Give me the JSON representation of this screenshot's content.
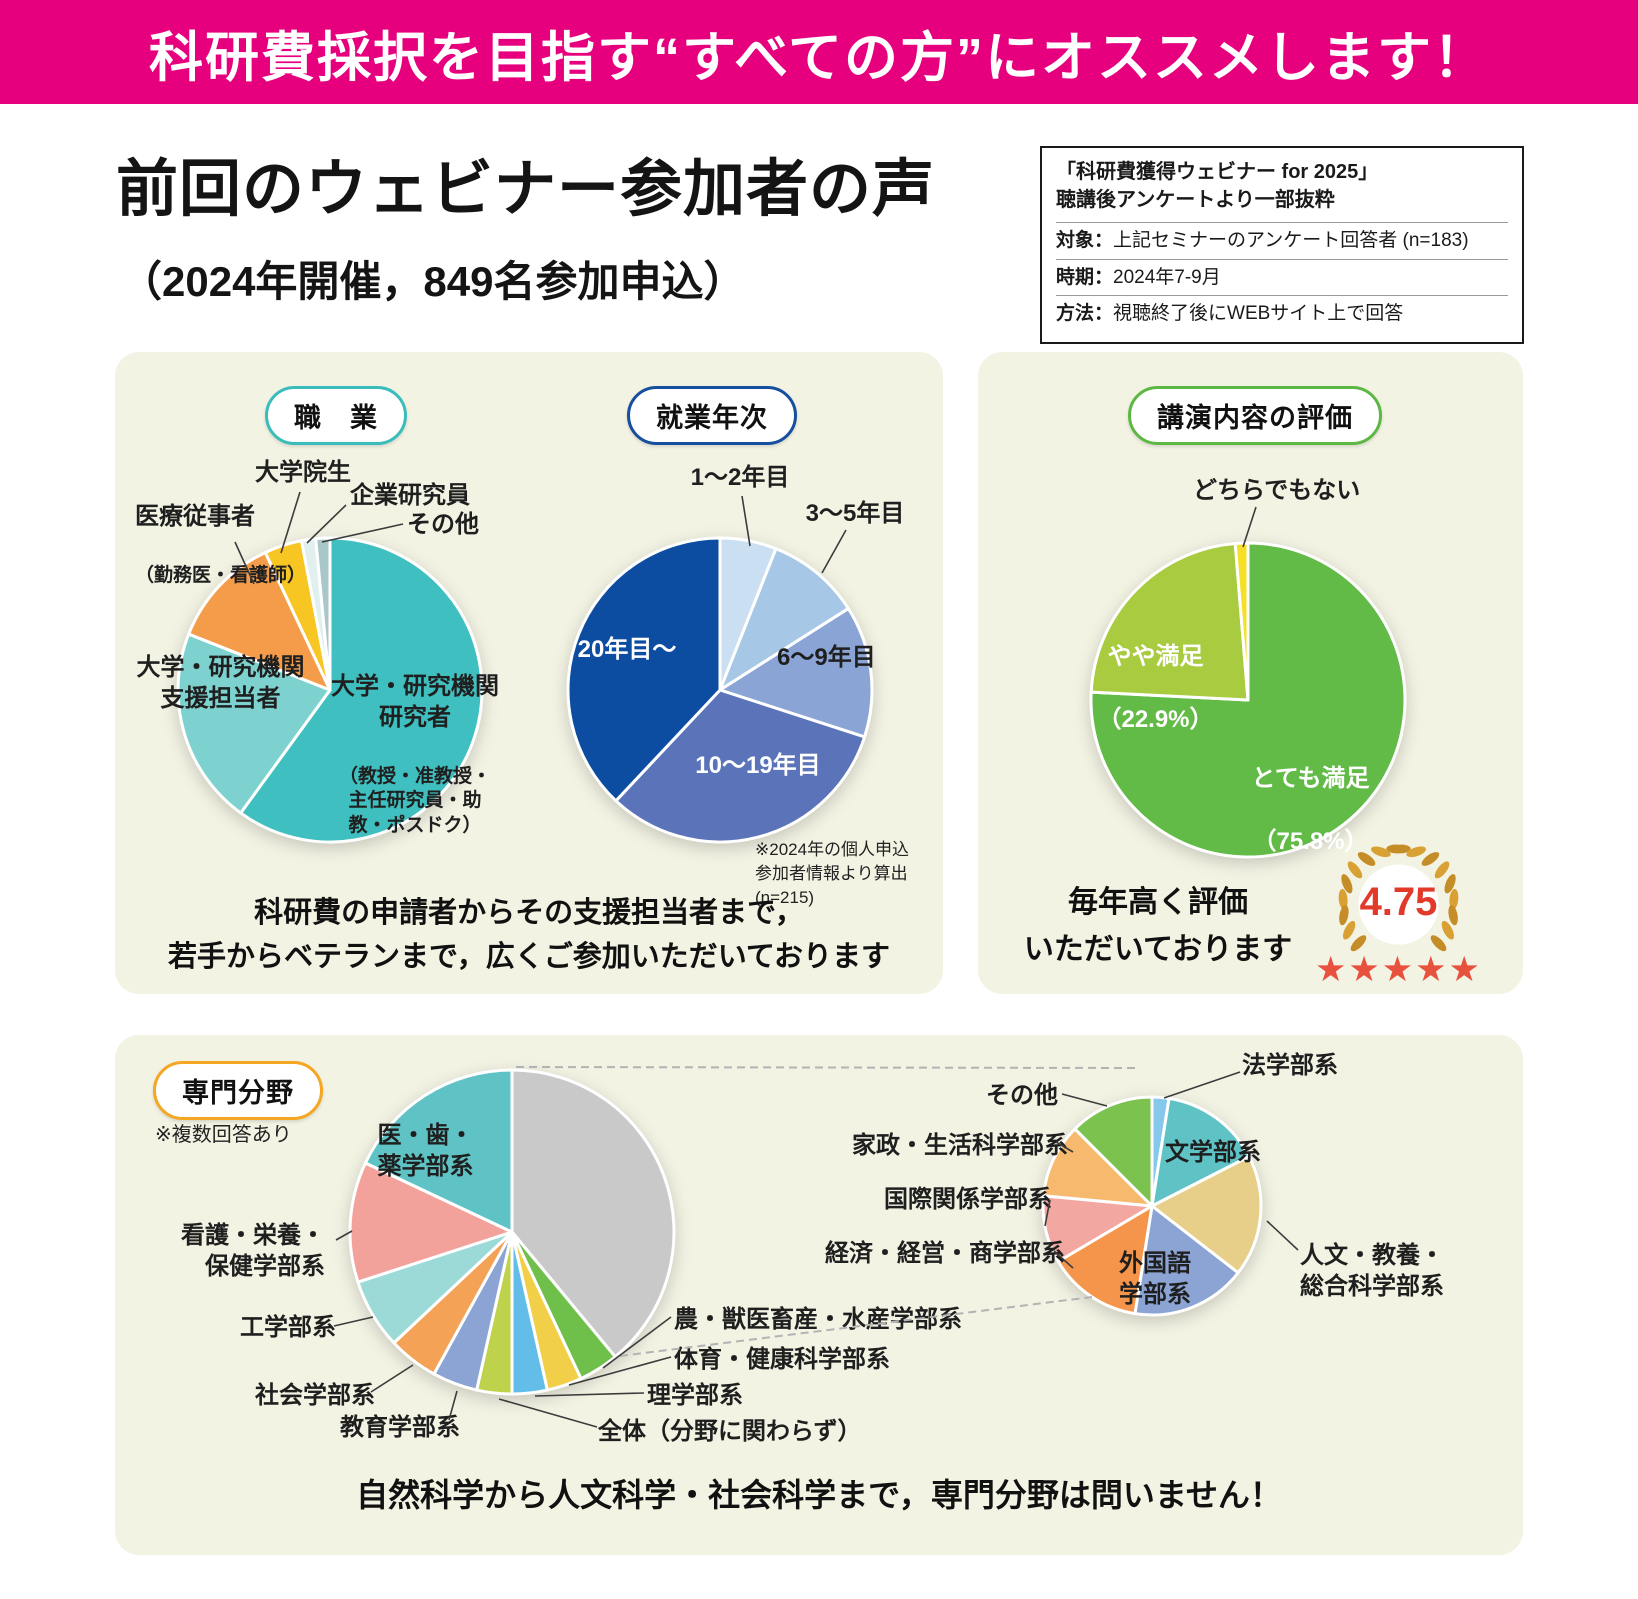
{
  "colors": {
    "banner_bg": "#e6007e",
    "panel_bg": "#f3f3e4",
    "star_color": "#e8513d",
    "score_color": "#e23a2a"
  },
  "banner": {
    "text": "科研費採択を目指す“すべての方”にオススメします！"
  },
  "header": {
    "title": "前回のウェビナー参加者の声",
    "subtitle": "（2024年開催，849名参加申込）"
  },
  "info_box": {
    "title_line1": "「科研費獲得ウェビナー for 2025」",
    "title_line2": "聴講後アンケートより一部抜粋",
    "rows": [
      {
        "label": "対象：",
        "value": "上記セミナーのアンケート回答者 (n=183)"
      },
      {
        "label": "時期：",
        "value": "2024年7-9月"
      },
      {
        "label": "方法：",
        "value": "視聴終了後にWEBサイト上で回答"
      }
    ]
  },
  "panel_participants": {
    "caption": "科研費の申請者からその支援担当者まで，\n若手からベテランまで，広くご参加いただいております"
  },
  "panel_rating": {
    "caption": "毎年高く評価\nいただいております",
    "score": "4.75",
    "stars": "★★★★★"
  },
  "panel_specialty": {
    "note": "※複数回答あり",
    "caption": "自然科学から人文科学・社会科学まで，専門分野は問いません！"
  },
  "chart_data": [
    {
      "id": "occupation",
      "type": "pie",
      "title": "職　業",
      "accent": "#3bbcbc",
      "slices": [
        {
          "label": "大学・研究機関研究者",
          "sublabel": "（教授・准教授・主任研究員・助教・ポスドク）",
          "value": 60,
          "color": "#3fbfbf"
        },
        {
          "label": "大学・研究機関支援担当者",
          "value": 21,
          "color": "#7dd2cf"
        },
        {
          "label": "医療従事者",
          "sublabel": "（勤務医・看護師）",
          "value": 12,
          "color": "#f49c49"
        },
        {
          "label": "大学院生",
          "value": 4,
          "color": "#f8c623"
        },
        {
          "label": "企業研究員",
          "value": 1.5,
          "color": "#e1efef"
        },
        {
          "label": "その他",
          "value": 1.5,
          "color": "#a9c6c9"
        }
      ]
    },
    {
      "id": "years-of-service",
      "type": "pie",
      "title": "就業年次",
      "accent": "#164f9d",
      "note": "※2024年の個人申込\n参加者情報より算出\n(n=215)",
      "slices": [
        {
          "label": "1〜2年目",
          "value": 6,
          "color": "#cadff2"
        },
        {
          "label": "3〜5年目",
          "value": 10,
          "color": "#a6c7e6"
        },
        {
          "label": "6〜9年目",
          "value": 14,
          "color": "#8aa4d6"
        },
        {
          "label": "10〜19年目",
          "value": 32,
          "color": "#5a73b9"
        },
        {
          "label": "20年目〜",
          "value": 38,
          "color": "#0c4da2"
        }
      ]
    },
    {
      "id": "content-rating",
      "type": "pie",
      "title": "講演内容の評価",
      "accent": "#5cb843",
      "slices": [
        {
          "label": "とても満足",
          "pct_text": "（75.8%）",
          "value": 75.8,
          "color": "#62bb46"
        },
        {
          "label": "やや満足",
          "pct_text": "（22.9%）",
          "value": 22.9,
          "color": "#a8cb3f"
        },
        {
          "label": "どちらでもない",
          "value": 1.3,
          "color": "#f5e027"
        }
      ]
    },
    {
      "id": "specialty",
      "type": "pie",
      "title": "専門分野",
      "accent": "#f5a623",
      "slices": [
        {
          "label": "",
          "value": 39,
          "color": "#c9c9c9"
        },
        {
          "label": "農・獣医畜産・水産学部系",
          "value": 4,
          "color": "#6fbf4b"
        },
        {
          "label": "体育・健康科学部系",
          "value": 3.5,
          "color": "#f2cf49"
        },
        {
          "label": "理学部系",
          "value": 3.5,
          "color": "#62bee9"
        },
        {
          "label": "全体（分野に関わらず）",
          "value": 3.5,
          "color": "#bfd24b"
        },
        {
          "label": "教育学部系",
          "value": 4.5,
          "color": "#8ba4d4"
        },
        {
          "label": "社会学部系",
          "value": 5,
          "color": "#f4a356"
        },
        {
          "label": "工学部系",
          "value": 7,
          "color": "#9bdad6"
        },
        {
          "label": "看護・栄養・保健学部系",
          "value": 12,
          "color": "#f2a29b"
        },
        {
          "label": "医・歯・薬学部系",
          "value": 18,
          "color": "#5fc3c6"
        }
      ]
    },
    {
      "id": "specialty-detail",
      "type": "pie",
      "slices": [
        {
          "label": "法学部系",
          "value": 2.5,
          "color": "#86c8ec"
        },
        {
          "label": "文学部系",
          "value": 15,
          "color": "#5fc3c6"
        },
        {
          "label": "人文・教養・総合科学部系",
          "value": 18,
          "color": "#e7cf8a"
        },
        {
          "label": "外国語学部系",
          "value": 17,
          "color": "#8ba4d4"
        },
        {
          "label": "経済・経営・商学部系",
          "value": 14,
          "color": "#f4954b"
        },
        {
          "label": "国際関係学部系",
          "value": 10,
          "color": "#f2a8a0"
        },
        {
          "label": "家政・生活科学部系",
          "value": 11,
          "color": "#f6b96e"
        },
        {
          "label": "その他",
          "value": 12.5,
          "color": "#7cc24e"
        }
      ]
    }
  ]
}
